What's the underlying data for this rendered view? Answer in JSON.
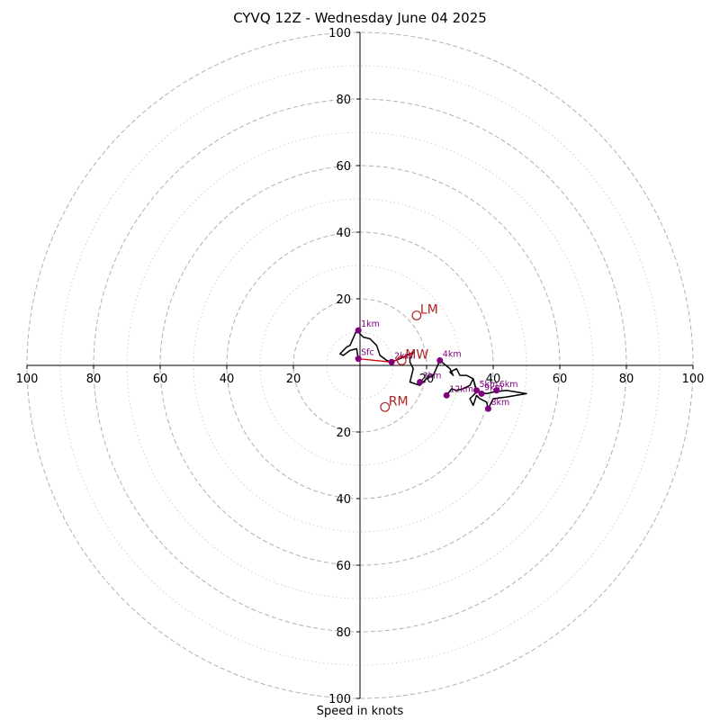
{
  "title": "CYVQ 12Z - Wednesday June 04 2025",
  "xlabel": "Speed in knots",
  "chart_data": {
    "type": "hodograph",
    "title": "CYVQ 12Z - Wednesday June 04 2025",
    "xlabel": "Speed in knots",
    "units": "knots",
    "range": [
      -100,
      100
    ],
    "major_rings": [
      20,
      40,
      60,
      80,
      100
    ],
    "minor_rings": [
      10,
      30,
      50,
      70,
      90
    ],
    "tick_labels_x": [
      "100",
      "80",
      "60",
      "40",
      "20",
      "20",
      "40",
      "60",
      "80",
      "100"
    ],
    "tick_values_x": [
      -100,
      -80,
      -60,
      -40,
      -20,
      20,
      40,
      60,
      80,
      100
    ],
    "tick_labels_y": [
      "100",
      "80",
      "60",
      "40",
      "20",
      "20",
      "40",
      "60",
      "80",
      "100"
    ],
    "tick_values_y": [
      100,
      80,
      60,
      40,
      20,
      -20,
      -40,
      -60,
      -80,
      -100
    ],
    "colors": {
      "trace": "#000000",
      "lowlevel_segment": "#d00000",
      "height_markers": "#800080",
      "storm_motion": "#b22222",
      "rings": "#b0b0b0",
      "axes": "#000000"
    },
    "trace": [
      [
        -0.5,
        2
      ],
      [
        -1,
        5
      ],
      [
        -3,
        4.5
      ],
      [
        -5,
        3
      ],
      [
        -6,
        3.5
      ],
      [
        -4,
        5.5
      ],
      [
        -3,
        6
      ],
      [
        -1,
        10.5
      ],
      [
        1,
        8.5
      ],
      [
        3,
        8
      ],
      [
        5,
        6
      ],
      [
        6,
        3
      ],
      [
        8,
        1.5
      ],
      [
        9.5,
        1
      ],
      [
        12,
        2
      ],
      [
        15,
        3.5
      ],
      [
        16,
        4
      ],
      [
        15,
        2
      ],
      [
        15,
        1
      ],
      [
        16,
        -1
      ],
      [
        15,
        -5
      ],
      [
        18,
        -6
      ],
      [
        20,
        -4
      ],
      [
        22,
        -3
      ],
      [
        24,
        1.5
      ],
      [
        27,
        -1
      ],
      [
        28,
        -3
      ],
      [
        27,
        -2
      ],
      [
        29,
        -1
      ],
      [
        30,
        -3
      ],
      [
        32,
        -3
      ],
      [
        34,
        -4
      ],
      [
        35,
        -7.5
      ],
      [
        36,
        -8
      ],
      [
        38,
        -8.5
      ],
      [
        40,
        -8
      ],
      [
        44,
        -7.5
      ],
      [
        50,
        -8.5
      ],
      [
        44,
        -9.5
      ],
      [
        40,
        -10
      ],
      [
        38.5,
        -13
      ],
      [
        38,
        -11
      ],
      [
        36,
        -10
      ],
      [
        35,
        -9
      ],
      [
        34,
        -12
      ],
      [
        33,
        -10
      ],
      [
        35,
        -8
      ],
      [
        34,
        -4
      ],
      [
        33,
        -6
      ],
      [
        31,
        -7
      ],
      [
        29,
        -7.5
      ],
      [
        27.5,
        -7
      ],
      [
        26,
        -9
      ]
    ],
    "lowlevel_segment": [
      [
        -0.5,
        2
      ],
      [
        9.5,
        1
      ],
      [
        16,
        4
      ]
    ],
    "height_markers": [
      {
        "label": "Sfc",
        "u": -0.5,
        "v": 2
      },
      {
        "label": "1km",
        "u": -0.5,
        "v": 10.5
      },
      {
        "label": "2km",
        "u": 9.5,
        "v": 1
      },
      {
        "label": "3km",
        "u": 18,
        "v": -5
      },
      {
        "label": "4km",
        "u": 24,
        "v": 1.5
      },
      {
        "label": "5km",
        "u": 35,
        "v": -7.5
      },
      {
        "label": "6km",
        "u": 41,
        "v": -7.5
      },
      {
        "label": "9km",
        "u": 36.5,
        "v": -8.5
      },
      {
        "label": "12km",
        "u": 26,
        "v": -9
      },
      {
        "label": "8km",
        "u": 38.5,
        "v": -13
      }
    ],
    "storm_motions": [
      {
        "label": "LM",
        "u": 17,
        "v": 15
      },
      {
        "label": "MW",
        "u": 12.5,
        "v": 1.5
      },
      {
        "label": "RM",
        "u": 7.5,
        "v": -12.5
      }
    ]
  }
}
